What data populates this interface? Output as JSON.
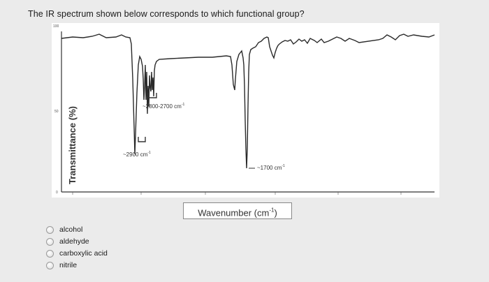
{
  "question": {
    "text": "The IR spectrum shown below corresponds to which functional group?"
  },
  "spectrum": {
    "ylabel": "Transmittance (%)",
    "xlabel": "Wavenumber (cm",
    "xlabel_sup": "-1",
    "xlabel_close": ")",
    "annotations": {
      "peak_2800": "~2800-2700 cm",
      "peak_2900": "~2900 cm",
      "peak_1700": "~1700 cm",
      "unit_sup": "-1"
    },
    "tick_labels_top": [
      "100"
    ],
    "tick_labels_mid": [
      "50"
    ],
    "tick_labels_bottom": [
      "0"
    ]
  },
  "options": [
    {
      "label": "alcohol"
    },
    {
      "label": "aldehyde"
    },
    {
      "label": "carboxylic acid"
    },
    {
      "label": "nitrile"
    }
  ]
}
